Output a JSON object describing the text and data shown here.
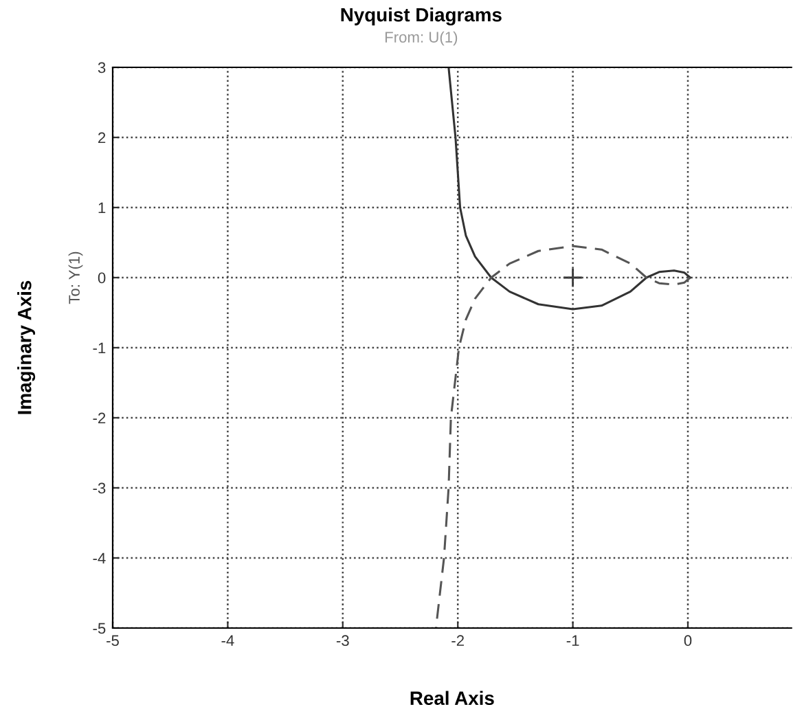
{
  "chart_data": {
    "type": "line",
    "title": "Nyquist Diagrams",
    "subtitle": "From: U(1)",
    "xlabel": "Real Axis",
    "ylabel": "Imaginary Axis",
    "annotations": [
      "To: Y(1)"
    ],
    "xlim": [
      -5,
      0.9
    ],
    "ylim": [
      -5,
      3
    ],
    "xticks": [
      -5,
      -4,
      -3,
      -2,
      -1,
      0
    ],
    "yticks": [
      -5,
      -4,
      -3,
      -2,
      -1,
      0,
      1,
      2,
      3
    ],
    "grid": true,
    "series": [
      {
        "color": "#333333",
        "line_style": "solid",
        "marker": "none",
        "x": [
          -2.08,
          -2.05,
          -2.02,
          -2.0,
          -1.98,
          -1.93,
          -1.85,
          -1.71,
          -1.55,
          -1.3,
          -1.0,
          -0.75,
          -0.5,
          -0.36,
          -0.25,
          -0.12,
          -0.03,
          0.02
        ],
        "values": [
          3,
          2.5,
          2,
          1.5,
          1,
          0.6,
          0.3,
          0,
          -0.2,
          -0.38,
          -0.45,
          -0.4,
          -0.2,
          0,
          0.08,
          0.1,
          0.07,
          0
        ]
      },
      {
        "color": "#555555",
        "line_style": "dashed",
        "marker": "none",
        "x": [
          0.02,
          -0.03,
          -0.12,
          -0.25,
          -0.36,
          -0.5,
          -0.75,
          -1.0,
          -1.3,
          -1.55,
          -1.71,
          -1.85,
          -1.93,
          -1.99,
          -2.06,
          -2.08,
          -2.12,
          -2.19
        ],
        "values": [
          0,
          -0.07,
          -0.1,
          -0.08,
          0,
          0.2,
          0.4,
          0.45,
          0.38,
          0.2,
          0,
          -0.3,
          -0.6,
          -1,
          -2,
          -3,
          -4,
          -5
        ]
      },
      {
        "type": "scatter",
        "color": "#333333",
        "marker": "cross",
        "x": [
          -1
        ],
        "values": [
          0
        ]
      }
    ]
  }
}
